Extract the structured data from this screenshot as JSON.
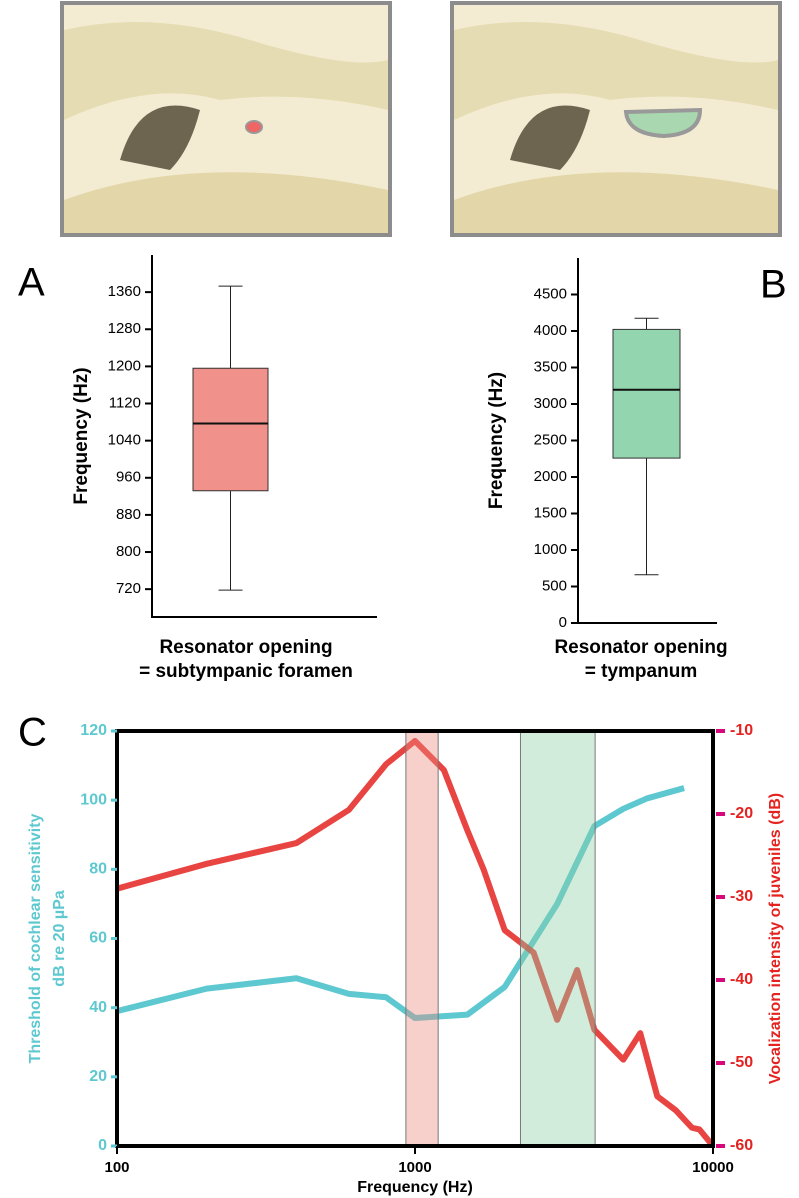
{
  "chart_data": [
    {
      "type": "box",
      "panel_label": "A",
      "y_label": "Frequency (Hz)",
      "x_label": [
        "Resonator opening",
        "= subtympanic foramen"
      ],
      "ylim": [
        660,
        1440
      ],
      "yticks": [
        720,
        800,
        880,
        960,
        1040,
        1120,
        1200,
        1280,
        1360
      ],
      "box": {
        "min": 718,
        "q1": 932,
        "median": 1077,
        "q3": 1196,
        "max": 1373
      },
      "color": "#f0928b"
    },
    {
      "type": "box",
      "panel_label": "B",
      "y_label": "Frequency (Hz)",
      "x_label": [
        "Resonator opening",
        "= tympanum"
      ],
      "ylim": [
        0,
        5000
      ],
      "yticks": [
        0,
        500,
        1000,
        1500,
        2000,
        2500,
        3000,
        3500,
        4000,
        4500
      ],
      "box": {
        "min": 661,
        "q1": 2259,
        "median": 3196,
        "q3": 4022,
        "max": 4174
      },
      "color": "#93d5ae"
    },
    {
      "type": "line",
      "panel_label": "C",
      "x_label": "Frequency (Hz)",
      "y_label": [
        "Threshold of cochlear sensitivity",
        "dB re 20 µPa"
      ],
      "y2_label": "Vocalization intensity of juveniles (dB)",
      "xscale": "log",
      "xlim": [
        100,
        10000
      ],
      "xticks": [
        100,
        1000,
        10000
      ],
      "ylim": [
        0,
        120
      ],
      "yticks": [
        0,
        20,
        40,
        60,
        80,
        100,
        120
      ],
      "y2lim": [
        -60,
        -10
      ],
      "y2ticks": [
        -60,
        -50,
        -40,
        -30,
        -20,
        -10
      ],
      "y2tick_color": "#d6087c",
      "bands": [
        {
          "from": 932,
          "to": 1196,
          "color": "#ec8a80"
        },
        {
          "from": 2259,
          "to": 4022,
          "color": "#8fcfa5"
        }
      ],
      "series": [
        {
          "color": "#5ec8d0",
          "x": [
            100,
            200,
            400,
            600,
            800,
            1000,
            1500,
            2000,
            3000,
            4000,
            5000,
            6000,
            8000
          ],
          "values": [
            39,
            45.5,
            48.5,
            44,
            43,
            37,
            38,
            46,
            70,
            92.5,
            97.5,
            100.5,
            103.5
          ]
        },
        {
          "color": "#e42320",
          "axis": "y2",
          "x": [
            100,
            200,
            400,
            600,
            800,
            1000,
            1250,
            1500,
            1700,
            2000,
            2500,
            3000,
            3500,
            4000,
            5000,
            5700,
            6500,
            7500,
            8500,
            9000,
            10000
          ],
          "values": [
            -29,
            -26,
            -23.5,
            -19.5,
            -14,
            -11.2,
            -14.7,
            -22,
            -26.7,
            -34,
            -36.7,
            -44.8,
            -38.8,
            -46,
            -49.6,
            -46.4,
            -54,
            -55.7,
            -57.8,
            -58,
            -60
          ]
        }
      ]
    }
  ]
}
